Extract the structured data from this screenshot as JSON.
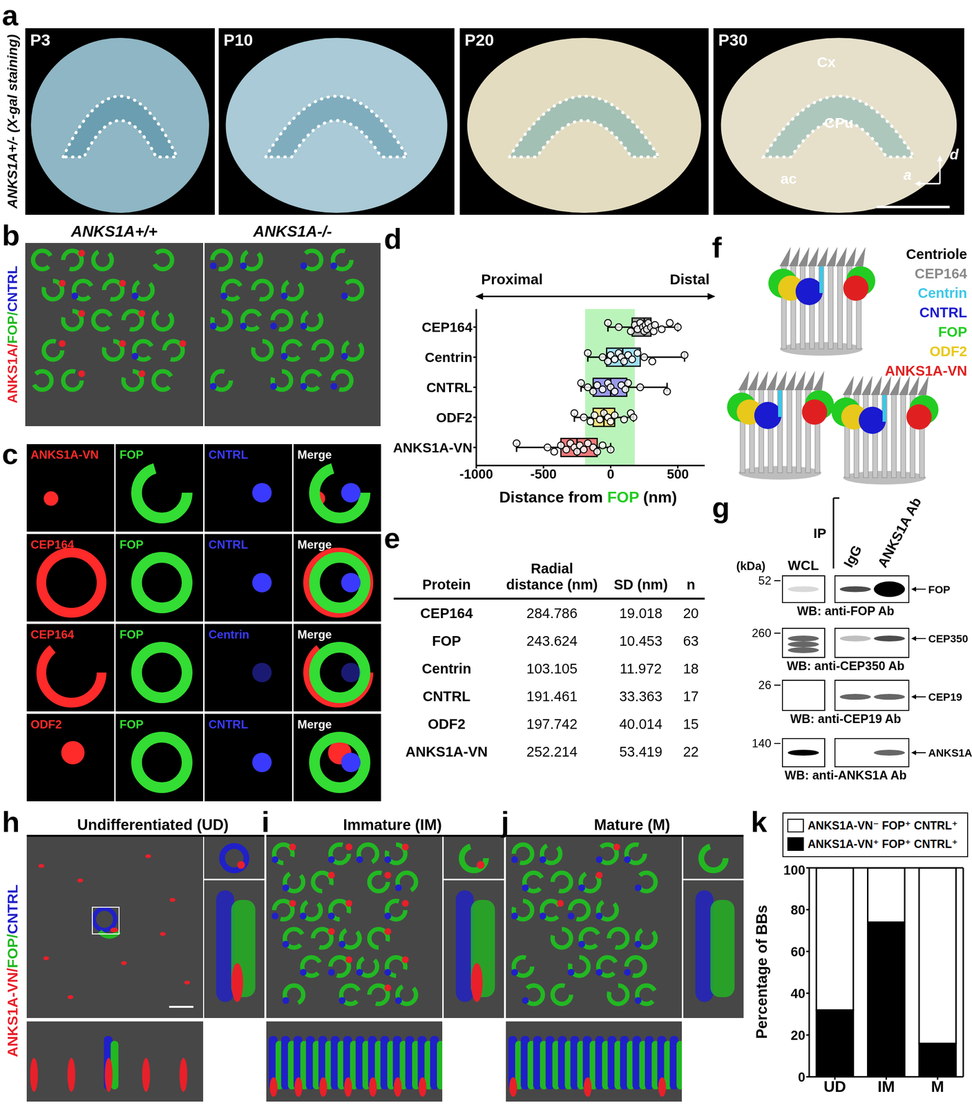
{
  "panels": {
    "a": {
      "letter": "a",
      "side_label": "ANKS1A+/- (X-gal staining)",
      "images": [
        "P3",
        "P10",
        "P20",
        "P30"
      ],
      "regions": [
        "Cx",
        "CPu",
        "ac"
      ],
      "axes": [
        "d",
        "a"
      ]
    },
    "b": {
      "letter": "b",
      "side_label": [
        {
          "text": "ANKS1A/",
          "color": "#e8202a"
        },
        {
          "text": "FOP/",
          "color": "#22b822"
        },
        {
          "text": "CNTRL",
          "color": "#2020c8"
        }
      ],
      "titles": [
        "ANKS1A+/+",
        "ANKS1A-/-"
      ]
    },
    "c": {
      "letter": "c",
      "rows": [
        [
          {
            "text": "ANKS1A-VN",
            "color": "#ff2a2a"
          },
          {
            "text": "FOP",
            "color": "#33dd33"
          },
          {
            "text": "CNTRL",
            "color": "#3a3aff"
          },
          {
            "text": "Merge",
            "color": "#ffffff"
          }
        ],
        [
          {
            "text": "CEP164",
            "color": "#ff2a2a"
          },
          {
            "text": "FOP",
            "color": "#33dd33"
          },
          {
            "text": "CNTRL",
            "color": "#3a3aff"
          },
          {
            "text": "Merge",
            "color": "#ffffff"
          }
        ],
        [
          {
            "text": "CEP164",
            "color": "#ff2a2a"
          },
          {
            "text": "FOP",
            "color": "#33dd33"
          },
          {
            "text": "Centrin",
            "color": "#3a3aff"
          },
          {
            "text": "Merge",
            "color": "#ffffff"
          }
        ],
        [
          {
            "text": "ODF2",
            "color": "#ff2a2a"
          },
          {
            "text": "FOP",
            "color": "#33dd33"
          },
          {
            "text": "CNTRL",
            "color": "#3a3aff"
          },
          {
            "text": "Merge",
            "color": "#ffffff"
          }
        ]
      ]
    },
    "e": {
      "letter": "e",
      "columns": [
        "Protein",
        "Radial distance (nm)",
        "SD (nm)",
        "n"
      ],
      "rows": [
        [
          "CEP164",
          284.786,
          19.018,
          20
        ],
        [
          "FOP",
          243.624,
          10.453,
          63
        ],
        [
          "Centrin",
          103.105,
          11.972,
          18
        ],
        [
          "CNTRL",
          191.461,
          33.363,
          17
        ],
        [
          "ODF2",
          197.742,
          40.014,
          15
        ],
        [
          "ANKS1A-VN",
          252.214,
          53.419,
          22
        ]
      ]
    },
    "f": {
      "letter": "f",
      "legend": [
        {
          "text": "Centriole",
          "color": "#000000"
        },
        {
          "text": "CEP164",
          "color": "#8a8a8a"
        },
        {
          "text": "Centrin",
          "color": "#3cc8e8"
        },
        {
          "text": "CNTRL",
          "color": "#1a1ad0"
        },
        {
          "text": "FOP",
          "color": "#22cc22"
        },
        {
          "text": "ODF2",
          "color": "#e8c81a"
        },
        {
          "text": "ANKS1A-VN",
          "color": "#e02020"
        }
      ]
    },
    "g": {
      "letter": "g",
      "kda_label": "(kDa)",
      "ip_label": "IP",
      "lanes": [
        "WCL",
        "IgG",
        "ANKS1A Ab"
      ],
      "blots": [
        {
          "marker": 52,
          "target": "FOP",
          "label": "WB: anti-FOP Ab"
        },
        {
          "marker": 260,
          "target": "CEP350",
          "label": "WB: anti-CEP350 Ab"
        },
        {
          "marker": 26,
          "target": "CEP19",
          "label": "WB: anti-CEP19 Ab"
        },
        {
          "marker": 140,
          "target": "ANKS1A",
          "label": "WB: anti-ANKS1A Ab"
        }
      ]
    },
    "h": {
      "letter": "h",
      "title": "Undifferentiated (UD)"
    },
    "i": {
      "letter": "i",
      "title": "Immature (IM)"
    },
    "j": {
      "letter": "j",
      "title": "Mature (M)"
    },
    "hij_side_label": [
      {
        "text": "ANKS1A-VN/",
        "color": "#e8202a"
      },
      {
        "text": "FOP/",
        "color": "#22b822"
      },
      {
        "text": "CNTRL",
        "color": "#2020c8"
      }
    ]
  },
  "chart_data": [
    {
      "panel": "d",
      "type": "box",
      "orientation": "horizontal",
      "arrow_labels": [
        "Proximal",
        "Distal"
      ],
      "x_label": [
        {
          "text": "Distance from ",
          "color": "#000000"
        },
        {
          "text": "FOP",
          "color": "#22cc22"
        },
        {
          "text": " (nm)",
          "color": "#000000"
        }
      ],
      "xlim": [
        -1000,
        700
      ],
      "xticks": [
        -1000,
        -500,
        0,
        500
      ],
      "grid": false,
      "band": [
        -190,
        180
      ],
      "band_color": "#9ef09e",
      "categories": [
        "CEP164",
        "Centrin",
        "CNTRL",
        "ODF2",
        "ANKS1A-VN"
      ],
      "boxes": [
        {
          "color": "#a6a6a6",
          "whisker_low": -20,
          "q1": 160,
          "median": 250,
          "q3": 300,
          "whisker_high": 500,
          "points": [
            -20,
            60,
            150,
            180,
            200,
            220,
            240,
            250,
            260,
            270,
            280,
            300,
            320,
            330,
            380,
            440,
            500
          ]
        },
        {
          "color": "#9fdff2",
          "whisker_low": -170,
          "q1": -30,
          "median": 90,
          "q3": 220,
          "whisker_high": 550,
          "points": [
            -170,
            -60,
            -20,
            0,
            30,
            60,
            80,
            100,
            130,
            160,
            200,
            250,
            310,
            550
          ]
        },
        {
          "color": "#9a9aec",
          "whisker_low": -220,
          "q1": -130,
          "median": 0,
          "q3": 120,
          "whisker_high": 420,
          "points": [
            -220,
            -170,
            -130,
            -100,
            -60,
            -20,
            0,
            30,
            80,
            110,
            130,
            220,
            420
          ]
        },
        {
          "color": "#f5e480",
          "whisker_low": -270,
          "q1": -130,
          "median": -50,
          "q3": 30,
          "whisker_high": 170,
          "points": [
            -270,
            -200,
            -150,
            -120,
            -80,
            -50,
            -20,
            0,
            30,
            100,
            150,
            170
          ]
        },
        {
          "color": "#f07a7a",
          "whisker_low": -700,
          "q1": -370,
          "median": -250,
          "q3": -100,
          "whisker_high": 0,
          "points": [
            -700,
            -470,
            -420,
            -370,
            -330,
            -300,
            -270,
            -250,
            -230,
            -200,
            -170,
            -130,
            -100,
            -60,
            0
          ]
        }
      ]
    },
    {
      "panel": "k",
      "type": "bar",
      "stacked": true,
      "legend": "top",
      "grid": false,
      "y_label": "Percentage of BBs",
      "categories": [
        "UD",
        "IM",
        "M"
      ],
      "ylim": [
        0,
        100
      ],
      "yticks": [
        0,
        20,
        40,
        60,
        80,
        100
      ],
      "series": [
        {
          "name": "ANKS1A-VN⁺ FOP⁺ CNTRL⁺",
          "color": "#000000",
          "values": [
            32,
            74,
            16
          ]
        },
        {
          "name": "ANKS1A-VN⁻ FOP⁺ CNTRL⁺",
          "color": "#ffffff",
          "values": [
            68,
            26,
            84
          ]
        }
      ]
    }
  ]
}
